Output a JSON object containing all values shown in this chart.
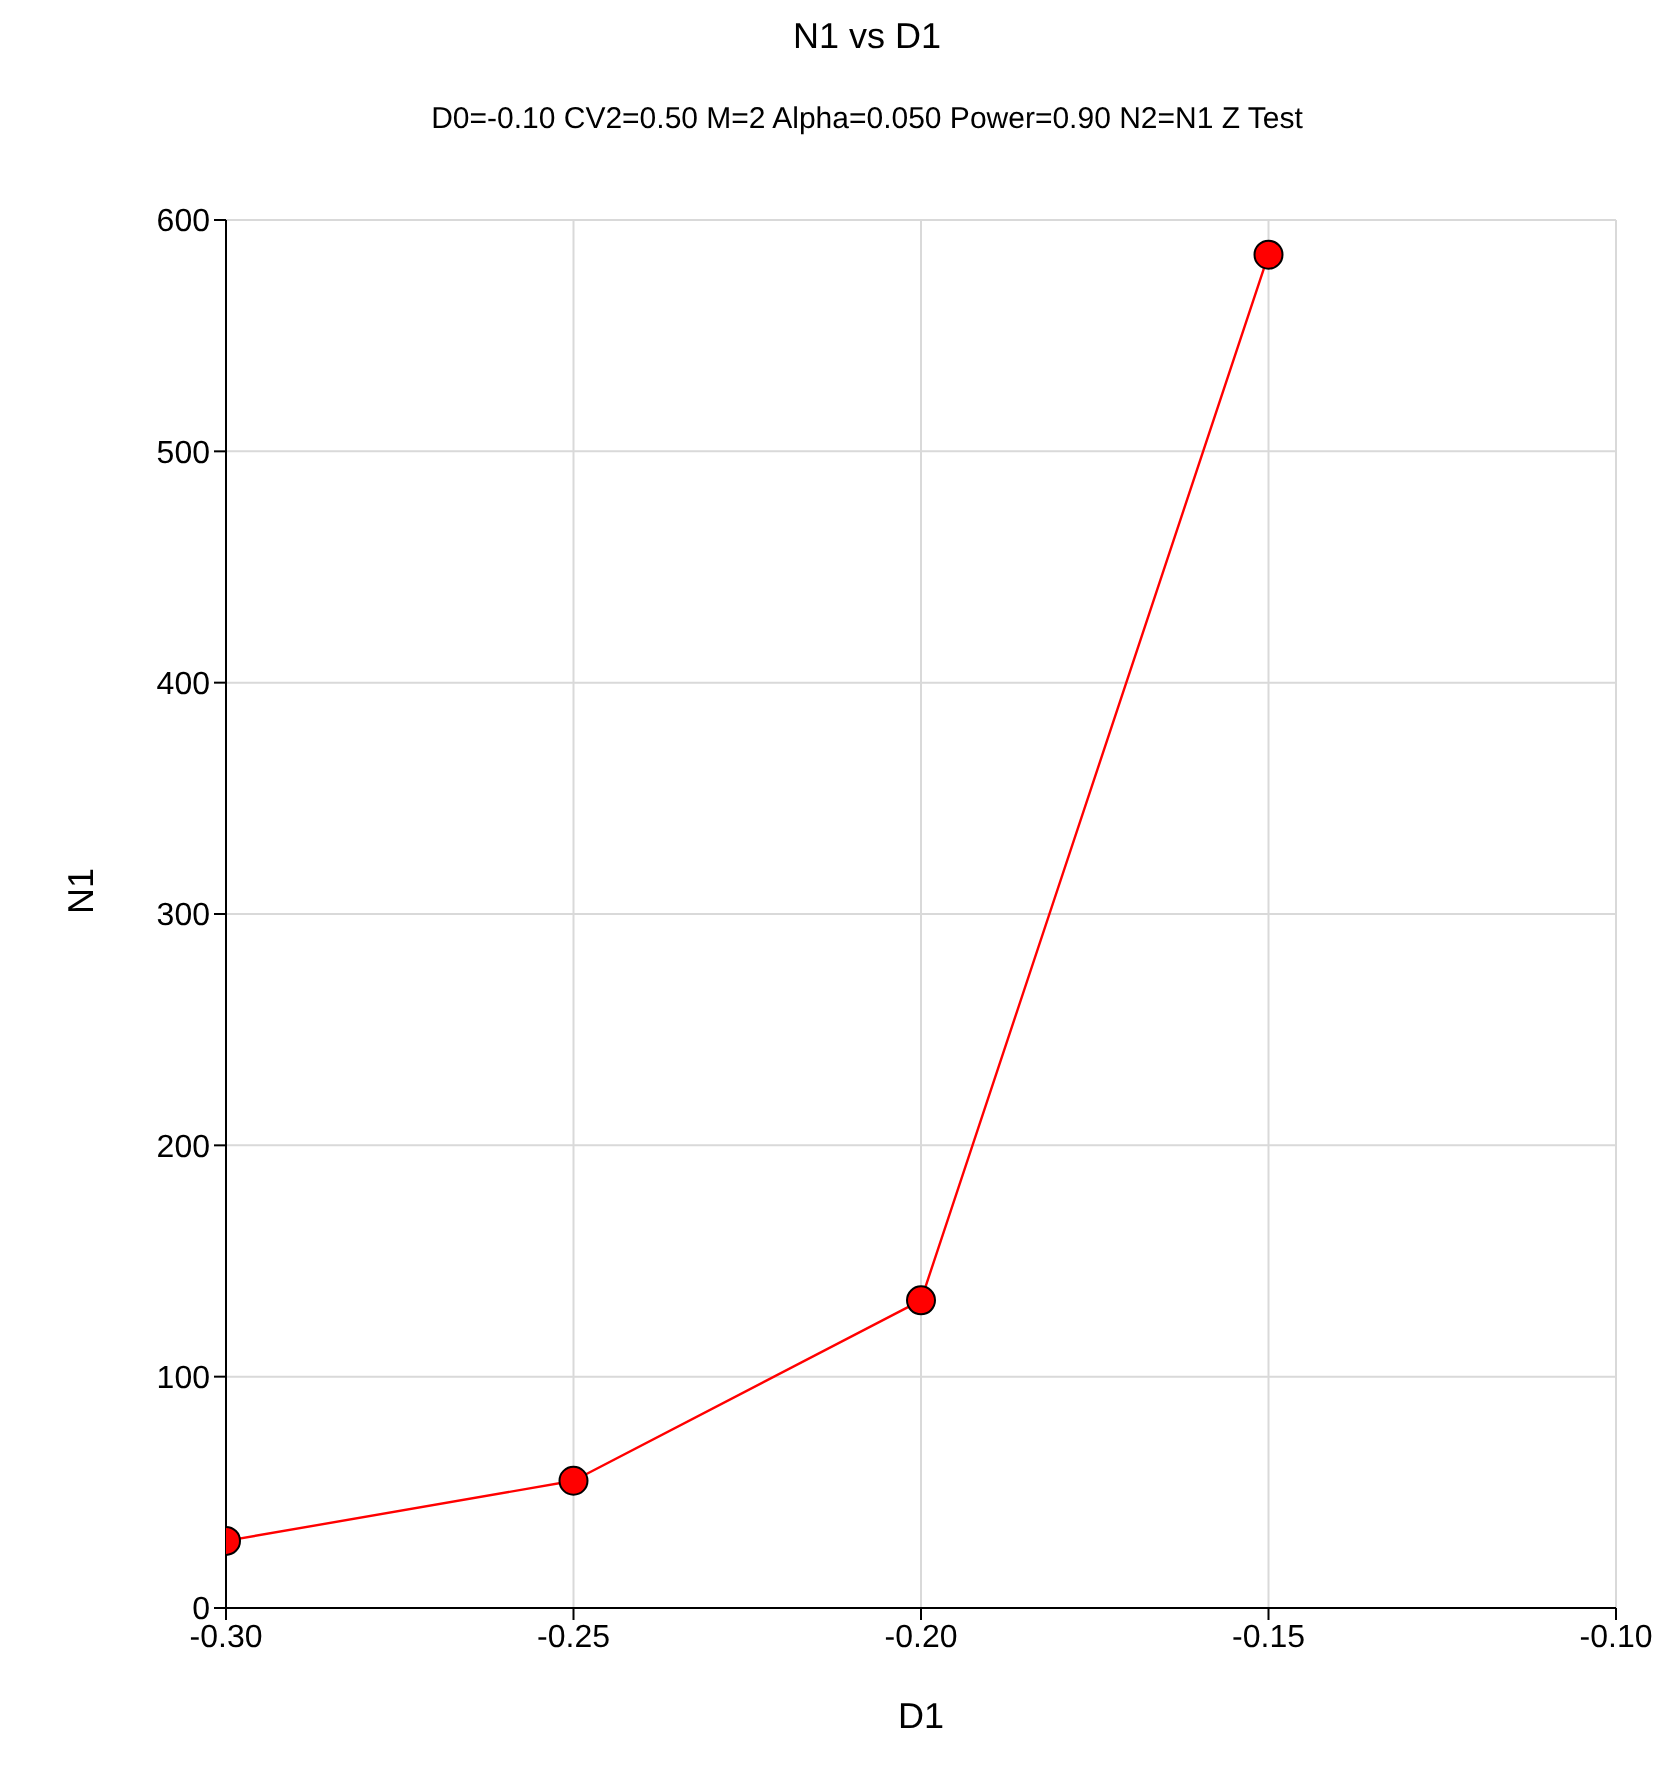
{
  "chart_data": {
    "type": "line",
    "title": "N1 vs D1",
    "subtitle": "D0=-0.10 CV2=0.50 M=2 Alpha=0.050 Power=0.90 N2=N1 Z Test",
    "xlabel": "D1",
    "ylabel": "N1",
    "x": [
      -0.3,
      -0.25,
      -0.2,
      -0.15
    ],
    "series": [
      {
        "color": "#ff0000",
        "values": [
          29,
          55,
          133,
          585
        ]
      }
    ],
    "xlim": [
      -0.3,
      -0.1
    ],
    "xticks": [
      {
        "value": -0.3,
        "label": "-0.30"
      },
      {
        "value": -0.25,
        "label": "-0.25"
      },
      {
        "value": -0.2,
        "label": "-0.20"
      },
      {
        "value": -0.15,
        "label": "-0.15"
      },
      {
        "value": -0.1,
        "label": "-0.10"
      }
    ],
    "ylim": [
      0,
      600
    ],
    "yticks": [
      0,
      100,
      200,
      300,
      400,
      500,
      600
    ],
    "grid": true,
    "legend": false,
    "marker": "circle",
    "line_style": "solid"
  }
}
